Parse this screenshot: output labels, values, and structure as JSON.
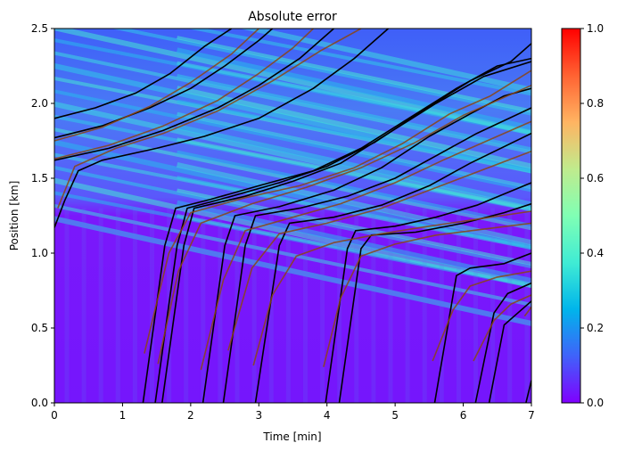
{
  "chart_data": {
    "type": "heatmap",
    "title": "Absolute error",
    "xlabel": "Time [min]",
    "ylabel": "Position [km]",
    "xlim": [
      0,
      7
    ],
    "ylim": [
      0,
      2.5
    ],
    "x_ticks": [
      "0",
      "1",
      "2",
      "3",
      "4",
      "5",
      "6",
      "7"
    ],
    "y_ticks": [
      "0.0",
      "0.5",
      "1.0",
      "1.5",
      "2.0",
      "2.5"
    ],
    "colorbar": {
      "colormap": "rainbow",
      "range": [
        0,
        1
      ],
      "ticks": [
        "0.0",
        "0.2",
        "0.4",
        "0.6",
        "0.8",
        "1.0"
      ]
    },
    "grid": false,
    "series": [
      {
        "color": "#000000",
        "trajectories": [
          [
            [
              0,
              1.17
            ],
            [
              0.15,
              1.35
            ],
            [
              0.35,
              1.55
            ],
            [
              0.7,
              1.62
            ],
            [
              1.5,
              1.7
            ],
            [
              2.2,
              1.78
            ],
            [
              3.0,
              1.9
            ],
            [
              3.8,
              2.1
            ],
            [
              4.4,
              2.3
            ],
            [
              4.9,
              2.5
            ]
          ],
          [
            [
              0,
              1.62
            ],
            [
              0.8,
              1.7
            ],
            [
              1.6,
              1.82
            ],
            [
              2.4,
              1.97
            ],
            [
              3.0,
              2.12
            ],
            [
              3.6,
              2.3
            ],
            [
              4.1,
              2.5
            ]
          ],
          [
            [
              0,
              1.77
            ],
            [
              0.7,
              1.85
            ],
            [
              1.4,
              1.97
            ],
            [
              2.0,
              2.1
            ],
            [
              2.5,
              2.25
            ],
            [
              3.0,
              2.42
            ],
            [
              3.2,
              2.5
            ]
          ],
          [
            [
              0,
              1.9
            ],
            [
              0.6,
              1.97
            ],
            [
              1.2,
              2.07
            ],
            [
              1.7,
              2.2
            ],
            [
              2.2,
              2.38
            ],
            [
              2.6,
              2.5
            ]
          ],
          [
            [
              1.3,
              0
            ],
            [
              1.62,
              1.05
            ],
            [
              1.78,
              1.3
            ],
            [
              2.3,
              1.36
            ],
            [
              3.0,
              1.45
            ],
            [
              3.8,
              1.55
            ],
            [
              4.5,
              1.7
            ],
            [
              5.2,
              1.9
            ],
            [
              5.9,
              2.1
            ],
            [
              6.5,
              2.25
            ],
            [
              7,
              2.3
            ]
          ],
          [
            [
              1.48,
              0
            ],
            [
              1.8,
              1.05
            ],
            [
              1.95,
              1.3
            ],
            [
              2.6,
              1.38
            ],
            [
              3.3,
              1.47
            ],
            [
              4.0,
              1.58
            ],
            [
              4.7,
              1.74
            ],
            [
              5.4,
              1.95
            ],
            [
              6.1,
              2.15
            ],
            [
              6.7,
              2.28
            ],
            [
              7,
              2.4
            ]
          ],
          [
            [
              1.58,
              0
            ],
            [
              1.9,
              1.05
            ],
            [
              2.05,
              1.3
            ],
            [
              2.8,
              1.38
            ],
            [
              3.5,
              1.48
            ],
            [
              4.2,
              1.6
            ],
            [
              4.9,
              1.8
            ],
            [
              5.6,
              2.0
            ],
            [
              6.3,
              2.18
            ],
            [
              7,
              2.28
            ]
          ],
          [
            [
              2.18,
              0
            ],
            [
              2.5,
              1.05
            ],
            [
              2.65,
              1.25
            ],
            [
              3.3,
              1.31
            ],
            [
              4.1,
              1.42
            ],
            [
              4.8,
              1.57
            ],
            [
              5.5,
              1.78
            ],
            [
              6.1,
              1.93
            ],
            [
              6.6,
              2.05
            ],
            [
              7,
              2.1
            ]
          ],
          [
            [
              2.48,
              0
            ],
            [
              2.8,
              1.05
            ],
            [
              2.95,
              1.25
            ],
            [
              3.6,
              1.3
            ],
            [
              4.3,
              1.38
            ],
            [
              5.0,
              1.5
            ],
            [
              5.6,
              1.65
            ],
            [
              6.2,
              1.8
            ],
            [
              7,
              1.97
            ]
          ],
          [
            [
              2.95,
              0
            ],
            [
              3.3,
              1.05
            ],
            [
              3.45,
              1.2
            ],
            [
              4.1,
              1.24
            ],
            [
              4.8,
              1.32
            ],
            [
              5.5,
              1.45
            ],
            [
              6.1,
              1.6
            ],
            [
              7,
              1.8
            ]
          ],
          [
            [
              3.98,
              0
            ],
            [
              4.3,
              1.03
            ],
            [
              4.42,
              1.15
            ],
            [
              5.0,
              1.18
            ],
            [
              5.6,
              1.24
            ],
            [
              6.2,
              1.32
            ],
            [
              7,
              1.47
            ]
          ],
          [
            [
              4.18,
              0
            ],
            [
              4.5,
              1.03
            ],
            [
              4.65,
              1.12
            ],
            [
              5.3,
              1.14
            ],
            [
              6.0,
              1.2
            ],
            [
              6.6,
              1.27
            ],
            [
              7,
              1.33
            ]
          ],
          [
            [
              5.58,
              0
            ],
            [
              5.9,
              0.85
            ],
            [
              6.1,
              0.9
            ],
            [
              6.6,
              0.93
            ],
            [
              7,
              1.0
            ]
          ],
          [
            [
              6.18,
              0
            ],
            [
              6.45,
              0.6
            ],
            [
              6.65,
              0.73
            ],
            [
              7,
              0.8
            ]
          ],
          [
            [
              6.38,
              0
            ],
            [
              6.6,
              0.52
            ],
            [
              6.8,
              0.6
            ],
            [
              7,
              0.68
            ]
          ],
          [
            [
              6.92,
              0
            ],
            [
              7,
              0.15
            ]
          ]
        ]
      },
      {
        "color": "#8b4513",
        "trajectories": [
          [
            [
              0.05,
              1.3
            ],
            [
              0.3,
              1.58
            ],
            [
              0.9,
              1.7
            ],
            [
              1.6,
              1.8
            ],
            [
              2.4,
              1.95
            ],
            [
              3.2,
              2.15
            ],
            [
              3.9,
              2.35
            ],
            [
              4.5,
              2.5
            ]
          ],
          [
            [
              0,
              1.63
            ],
            [
              0.8,
              1.72
            ],
            [
              1.6,
              1.85
            ],
            [
              2.4,
              2.02
            ],
            [
              3.0,
              2.2
            ],
            [
              3.5,
              2.37
            ],
            [
              3.8,
              2.5
            ]
          ],
          [
            [
              0,
              1.75
            ],
            [
              0.7,
              1.84
            ],
            [
              1.4,
              1.98
            ],
            [
              2.0,
              2.14
            ],
            [
              2.6,
              2.33
            ],
            [
              3.0,
              2.5
            ]
          ],
          [
            [
              1.32,
              0.33
            ],
            [
              1.68,
              1.0
            ],
            [
              2.0,
              1.27
            ],
            [
              2.8,
              1.37
            ],
            [
              3.6,
              1.45
            ],
            [
              4.4,
              1.57
            ],
            [
              5.1,
              1.73
            ],
            [
              5.8,
              1.93
            ],
            [
              6.4,
              2.05
            ],
            [
              7,
              2.22
            ]
          ],
          [
            [
              1.52,
              0.26
            ],
            [
              1.82,
              0.88
            ],
            [
              2.15,
              1.2
            ],
            [
              2.9,
              1.33
            ],
            [
              3.7,
              1.44
            ],
            [
              4.5,
              1.57
            ],
            [
              5.3,
              1.74
            ],
            [
              6.0,
              1.92
            ],
            [
              7,
              2.12
            ]
          ],
          [
            [
              2.15,
              0.22
            ],
            [
              2.48,
              0.82
            ],
            [
              2.8,
              1.15
            ],
            [
              3.5,
              1.24
            ],
            [
              4.2,
              1.33
            ],
            [
              5.0,
              1.47
            ],
            [
              5.7,
              1.62
            ],
            [
              7,
              1.88
            ]
          ],
          [
            [
              2.55,
              0.35
            ],
            [
              2.9,
              0.9
            ],
            [
              3.3,
              1.13
            ],
            [
              4.0,
              1.2
            ],
            [
              4.8,
              1.3
            ],
            [
              5.5,
              1.42
            ],
            [
              7,
              1.68
            ]
          ],
          [
            [
              2.92,
              0.25
            ],
            [
              3.2,
              0.72
            ],
            [
              3.55,
              0.98
            ],
            [
              4.1,
              1.07
            ],
            [
              4.8,
              1.13
            ],
            [
              5.5,
              1.18
            ],
            [
              7,
              1.28
            ]
          ],
          [
            [
              3.95,
              0.24
            ],
            [
              4.2,
              0.7
            ],
            [
              4.5,
              0.98
            ],
            [
              5.0,
              1.06
            ],
            [
              5.6,
              1.12
            ],
            [
              6.3,
              1.16
            ],
            [
              7,
              1.2
            ]
          ],
          [
            [
              5.55,
              0.28
            ],
            [
              5.85,
              0.62
            ],
            [
              6.1,
              0.78
            ],
            [
              6.5,
              0.84
            ],
            [
              7,
              0.88
            ]
          ],
          [
            [
              6.15,
              0.28
            ],
            [
              6.45,
              0.55
            ],
            [
              6.7,
              0.66
            ],
            [
              7,
              0.72
            ]
          ],
          [
            [
              6.9,
              0.58
            ],
            [
              7,
              0.64
            ]
          ]
        ]
      }
    ]
  }
}
